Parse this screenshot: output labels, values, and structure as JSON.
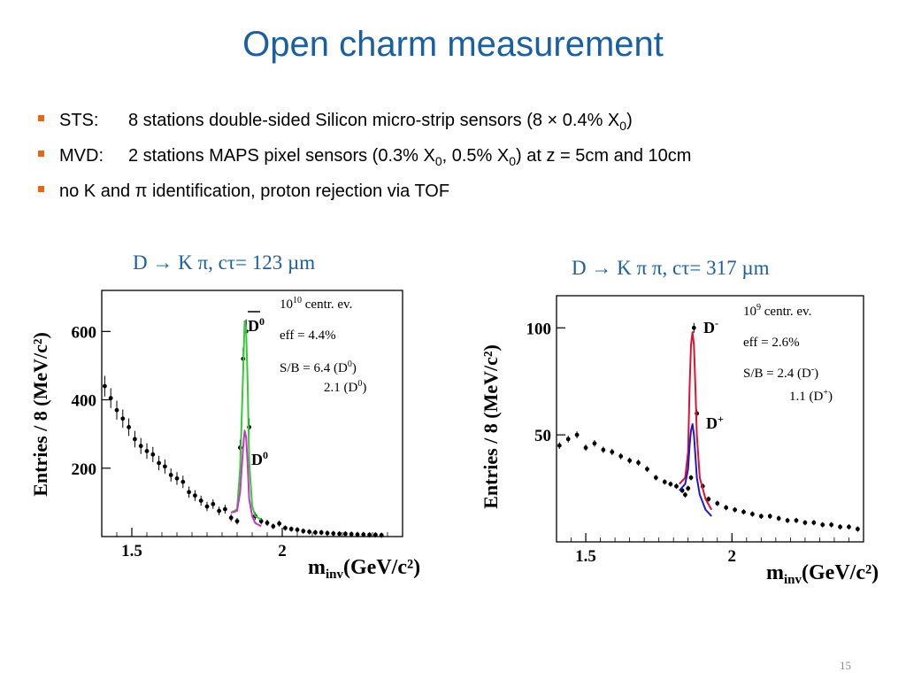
{
  "slide": {
    "title": "Open charm measurement",
    "page_number": "15",
    "accent_color": "#1a5fa0",
    "bullet_color": "#e0671c"
  },
  "bullets": [
    {
      "label": "STS:",
      "text_pre": "8 stations double-sided Silicon micro-strip sensors (8 × 0.4% X",
      "sub": "0",
      "text_post": ")"
    },
    {
      "label": "MVD:",
      "text_pre": "2 stations MAPS pixel sensors (0.3% X",
      "sub": "0",
      "text_mid": ", 0.5% X",
      "sub2": "0",
      "text_post": ") at z = 5cm and 10cm"
    },
    {
      "text": "no K and π identification, proton rejection via TOF"
    }
  ],
  "plots": {
    "left": {
      "heading": "D  → K π, cτ= 123 µm",
      "ylabel": "Entries / 8 (MeV/c²)",
      "xlabel": "m",
      "xlabel_sub": "inv",
      "xlabel_units": "(GeV/c²)",
      "xticks": [
        "1.5",
        "2"
      ],
      "yticks": [
        "200",
        "400",
        "600"
      ],
      "info": {
        "events_base": "10",
        "events_exp": "10",
        "events_suffix": " centr. ev.",
        "eff": "eff = 4.4%",
        "sb_prefix": "S/B = 6.4 (D",
        "sb_sup": "0",
        "sb_suffix": ")",
        "sb2_prefix": "2.1 (D",
        "sb2_sup": "0",
        "sb2_suffix": ")"
      },
      "peak_labels": {
        "upper": "D",
        "upper_sup": "0",
        "lower": "D",
        "lower_sup": "0"
      }
    },
    "right": {
      "heading": "D  → K π π, cτ= 317 µm",
      "ylabel": "Entries / 8 (MeV/c²)",
      "xlabel": "m",
      "xlabel_sub": "inv",
      "xlabel_units": "(GeV/c²)",
      "xticks": [
        "1.5",
        "2"
      ],
      "yticks": [
        "50",
        "100"
      ],
      "info": {
        "events_base": "10",
        "events_exp": "9",
        "events_suffix": " centr. ev.",
        "eff": "eff = 2.6%",
        "sb_prefix": "S/B = 2.4 (D",
        "sb_sup": "-",
        "sb_suffix": ")",
        "sb2_prefix": "1.1 (D",
        "sb2_sup": "+",
        "sb2_suffix": ")"
      },
      "peak_labels": {
        "upper": "D",
        "upper_sup": "-",
        "lower": "D",
        "lower_sup": "+"
      }
    }
  },
  "chart_data": [
    {
      "type": "scatter",
      "ylabel": "Entries / 8 (MeV/c²)",
      "xlabel": "m_inv (GeV/c²)",
      "xlim": [
        1.4,
        2.4
      ],
      "ylim": [
        0,
        720
      ],
      "series": [
        {
          "name": "",
          "color": "#000000",
          "x": [
            1.41,
            1.43,
            1.45,
            1.47,
            1.49,
            1.51,
            1.53,
            1.55,
            1.57,
            1.59,
            1.61,
            1.63,
            1.65,
            1.67,
            1.69,
            1.71,
            1.73,
            1.75,
            1.77,
            1.79,
            1.81,
            1.83,
            1.85,
            1.86,
            1.87,
            1.88,
            1.89,
            1.91,
            1.93,
            1.95,
            1.97,
            1.99,
            2.01,
            2.03,
            2.05,
            2.07,
            2.09,
            2.11,
            2.13,
            2.15,
            2.17,
            2.19,
            2.21,
            2.23,
            2.25,
            2.27,
            2.29,
            2.31,
            2.33
          ],
          "y": [
            440,
            405,
            370,
            345,
            320,
            285,
            265,
            250,
            240,
            215,
            205,
            180,
            170,
            160,
            130,
            120,
            105,
            88,
            95,
            75,
            80,
            55,
            45,
            260,
            520,
            600,
            320,
            60,
            45,
            40,
            30,
            38,
            25,
            22,
            20,
            16,
            14,
            12,
            12,
            10,
            9,
            8,
            8,
            7,
            6,
            6,
            5,
            5,
            4
          ]
        },
        {
          "name": "",
          "color": "#33cc33",
          "x": [
            1.83,
            1.85,
            1.86,
            1.87,
            1.875,
            1.88,
            1.885,
            1.89,
            1.9,
            1.91,
            1.93
          ],
          "y": [
            70,
            80,
            200,
            480,
            630,
            600,
            450,
            220,
            90,
            60,
            50
          ]
        },
        {
          "name": "",
          "color": "#cc33cc",
          "x": [
            1.83,
            1.85,
            1.86,
            1.87,
            1.875,
            1.88,
            1.885,
            1.89,
            1.9,
            1.91,
            1.93
          ],
          "y": [
            70,
            75,
            130,
            260,
            310,
            290,
            210,
            110,
            60,
            40,
            30
          ]
        }
      ]
    },
    {
      "type": "scatter",
      "ylabel": "Entries / 8 (MeV/c²)",
      "xlabel": "m_inv (GeV/c²)",
      "xlim": [
        1.4,
        2.45
      ],
      "ylim": [
        0,
        115
      ],
      "series": [
        {
          "name": "",
          "color": "#000000",
          "x": [
            1.41,
            1.44,
            1.47,
            1.5,
            1.53,
            1.56,
            1.59,
            1.62,
            1.65,
            1.68,
            1.71,
            1.74,
            1.77,
            1.79,
            1.81,
            1.83,
            1.84,
            1.85,
            1.86,
            1.87,
            1.88,
            1.9,
            1.92,
            1.95,
            1.98,
            2.01,
            2.04,
            2.07,
            2.1,
            2.13,
            2.16,
            2.19,
            2.22,
            2.25,
            2.28,
            2.31,
            2.34,
            2.37,
            2.4,
            2.43
          ],
          "y": [
            45,
            48,
            50,
            44,
            46,
            43,
            42,
            40,
            38,
            37,
            34,
            30,
            28,
            27,
            26,
            24,
            22,
            25,
            30,
            100,
            60,
            26,
            20,
            18,
            16,
            15,
            14,
            13,
            12,
            12,
            11,
            10,
            10,
            9,
            9,
            8,
            8,
            7,
            7,
            6
          ]
        },
        {
          "name": "",
          "color": "#e01030",
          "x": [
            1.82,
            1.84,
            1.85,
            1.855,
            1.86,
            1.865,
            1.87,
            1.875,
            1.88,
            1.89,
            1.91,
            1.93
          ],
          "y": [
            27,
            30,
            42,
            72,
            92,
            98,
            92,
            72,
            50,
            30,
            20,
            15
          ]
        },
        {
          "name": "",
          "color": "#1a1acc",
          "x": [
            1.82,
            1.84,
            1.85,
            1.855,
            1.86,
            1.865,
            1.87,
            1.875,
            1.88,
            1.89,
            1.91,
            1.93
          ],
          "y": [
            24,
            27,
            34,
            45,
            52,
            55,
            50,
            40,
            30,
            22,
            15,
            12
          ]
        }
      ]
    }
  ]
}
